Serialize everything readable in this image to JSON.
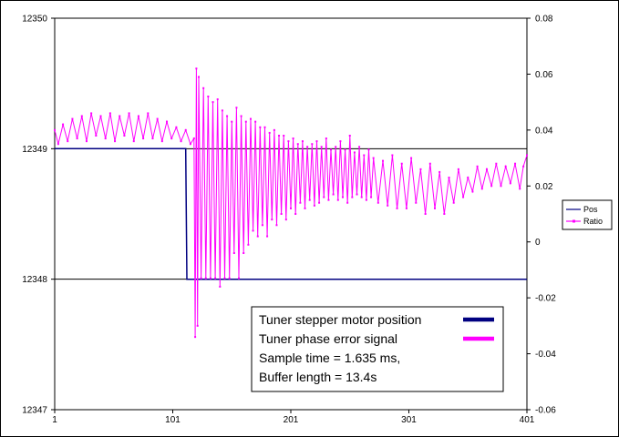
{
  "chart_data": {
    "type": "line",
    "x_axis": {
      "min": 1,
      "max": 401,
      "ticks": [
        1,
        101,
        201,
        301,
        401
      ],
      "tick_labels": [
        "1",
        "101",
        "201",
        "301",
        "401"
      ]
    },
    "y_left": {
      "min": 12347,
      "max": 12350,
      "ticks": [
        12347,
        12348,
        12349,
        12350
      ],
      "tick_labels": [
        "12347",
        "12348",
        "12349",
        "12350"
      ]
    },
    "y_right": {
      "min": -0.06,
      "max": 0.08,
      "ticks": [
        -0.06,
        -0.04,
        -0.02,
        0,
        0.02,
        0.04,
        0.06,
        0.08
      ],
      "tick_labels": [
        "-0.06",
        "-0.04",
        "-0.02",
        "0",
        "0.02",
        "0.04",
        "0.06",
        "0.08"
      ]
    },
    "gridlines_y_left": [
      12348,
      12349
    ],
    "series": [
      {
        "name": "Pos",
        "axis": "left",
        "color": "#000080",
        "points": [
          [
            1,
            12349
          ],
          [
            112,
            12349
          ],
          [
            113,
            12348
          ],
          [
            401,
            12348
          ]
        ]
      },
      {
        "name": "Ratio",
        "axis": "right",
        "color": "#ff00ff",
        "marker": "dot",
        "description_points": [
          [
            1,
            0.04
          ],
          [
            4,
            0.035
          ],
          [
            8,
            0.042
          ],
          [
            12,
            0.036
          ],
          [
            16,
            0.044
          ],
          [
            20,
            0.037
          ],
          [
            24,
            0.045
          ],
          [
            28,
            0.036
          ],
          [
            32,
            0.046
          ],
          [
            36,
            0.038
          ],
          [
            40,
            0.045
          ],
          [
            44,
            0.037
          ],
          [
            48,
            0.046
          ],
          [
            52,
            0.036
          ],
          [
            56,
            0.045
          ],
          [
            60,
            0.038
          ],
          [
            64,
            0.046
          ],
          [
            68,
            0.036
          ],
          [
            72,
            0.045
          ],
          [
            76,
            0.037
          ],
          [
            80,
            0.046
          ],
          [
            84,
            0.037
          ],
          [
            88,
            0.044
          ],
          [
            92,
            0.036
          ],
          [
            96,
            0.043
          ],
          [
            100,
            0.037
          ],
          [
            104,
            0.041
          ],
          [
            108,
            0.036
          ],
          [
            112,
            0.04
          ],
          [
            116,
            0.035
          ],
          [
            119,
            0.037
          ],
          [
            120,
            -0.034
          ],
          [
            121,
            0.062
          ],
          [
            122,
            -0.03
          ],
          [
            123,
            0.059
          ],
          [
            125,
            -0.013
          ],
          [
            127,
            0.055
          ],
          [
            129,
            -0.013
          ],
          [
            131,
            0.052
          ],
          [
            133,
            -0.013
          ],
          [
            135,
            0.05
          ],
          [
            137,
            -0.013
          ],
          [
            139,
            0.051
          ],
          [
            141,
            -0.016
          ],
          [
            143,
            0.047
          ],
          [
            145,
            -0.013
          ],
          [
            147,
            0.045
          ],
          [
            149,
            -0.013
          ],
          [
            151,
            0.043
          ],
          [
            153,
            -0.004
          ],
          [
            155,
            0.048
          ],
          [
            157,
            -0.013
          ],
          [
            159,
            0.045
          ],
          [
            161,
            -0.004
          ],
          [
            163,
            0.043
          ],
          [
            165,
            -0.001
          ],
          [
            167,
            0.044
          ],
          [
            169,
            0.004
          ],
          [
            171,
            0.043
          ],
          [
            173,
            0.002
          ],
          [
            175,
            0.041
          ],
          [
            177,
            0.006
          ],
          [
            179,
            0.041
          ],
          [
            181,
            0.002
          ],
          [
            183,
            0.039
          ],
          [
            185,
            0.008
          ],
          [
            187,
            0.04
          ],
          [
            189,
            0.006
          ],
          [
            191,
            0.038
          ],
          [
            193,
            0.01
          ],
          [
            195,
            0.038
          ],
          [
            197,
            0.008
          ],
          [
            199,
            0.036
          ],
          [
            201,
            0.012
          ],
          [
            203,
            0.037
          ],
          [
            205,
            0.01
          ],
          [
            207,
            0.035
          ],
          [
            209,
            0.014
          ],
          [
            211,
            0.036
          ],
          [
            213,
            0.012
          ],
          [
            215,
            0.034
          ],
          [
            217,
            0.015
          ],
          [
            219,
            0.035
          ],
          [
            221,
            0.013
          ],
          [
            223,
            0.036
          ],
          [
            225,
            0.014
          ],
          [
            227,
            0.034
          ],
          [
            229,
            0.016
          ],
          [
            231,
            0.037
          ],
          [
            233,
            0.015
          ],
          [
            235,
            0.033
          ],
          [
            237,
            0.017
          ],
          [
            239,
            0.034
          ],
          [
            241,
            0.015
          ],
          [
            243,
            0.036
          ],
          [
            245,
            0.016
          ],
          [
            247,
            0.033
          ],
          [
            249,
            0.014
          ],
          [
            251,
            0.038
          ],
          [
            253,
            0.016
          ],
          [
            255,
            0.032
          ],
          [
            257,
            0.017
          ],
          [
            259,
            0.034
          ],
          [
            261,
            0.016
          ],
          [
            263,
            0.031
          ],
          [
            265,
            0.015
          ],
          [
            267,
            0.033
          ],
          [
            269,
            0.016
          ],
          [
            271,
            0.03
          ],
          [
            275,
            0.014
          ],
          [
            279,
            0.029
          ],
          [
            283,
            0.013
          ],
          [
            287,
            0.031
          ],
          [
            291,
            0.012
          ],
          [
            295,
            0.028
          ],
          [
            299,
            0.012
          ],
          [
            303,
            0.03
          ],
          [
            307,
            0.014
          ],
          [
            311,
            0.026
          ],
          [
            315,
            0.01
          ],
          [
            319,
            0.028
          ],
          [
            323,
            0.012
          ],
          [
            327,
            0.025
          ],
          [
            331,
            0.01
          ],
          [
            335,
            0.023
          ],
          [
            339,
            0.014
          ],
          [
            343,
            0.026
          ],
          [
            347,
            0.016
          ],
          [
            351,
            0.023
          ],
          [
            355,
            0.018
          ],
          [
            359,
            0.027
          ],
          [
            363,
            0.019
          ],
          [
            367,
            0.026
          ],
          [
            371,
            0.02
          ],
          [
            375,
            0.028
          ],
          [
            379,
            0.02
          ],
          [
            383,
            0.027
          ],
          [
            387,
            0.021
          ],
          [
            391,
            0.028
          ],
          [
            395,
            0.019
          ],
          [
            398,
            0.027
          ],
          [
            401,
            0.031
          ]
        ]
      }
    ],
    "legend": {
      "placement": "right",
      "entries": [
        "Pos",
        "Ratio"
      ]
    },
    "annotation_lines": [
      "Tuner stepper motor position",
      "Tuner phase error signal",
      "Sample time = 1.635 ms,",
      "Buffer length = 13.4s"
    ],
    "annotation_swatches": [
      "#000080",
      "#ff00ff"
    ]
  }
}
